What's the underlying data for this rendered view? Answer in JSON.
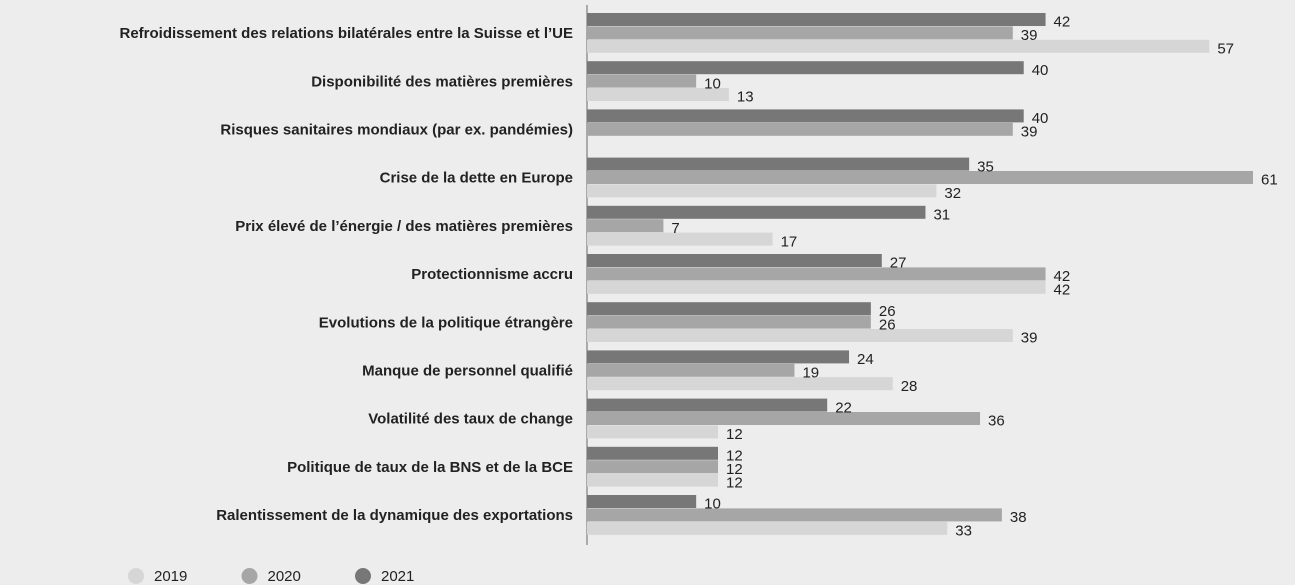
{
  "chart_data": {
    "type": "bar",
    "orientation": "horizontal",
    "categories": [
      "Refroidissement des relations bilatérales entre la Suisse et l’UE",
      "Disponibilité des matières premières",
      "Risques sanitaires mondiaux (par ex. pandémies)",
      "Crise de la dette en Europe",
      "Prix élevé de l’énergie / des matières premières",
      "Protectionnisme accru",
      "Evolutions de la politique étrangère",
      "Manque de personnel qualifié",
      "Volatilité des taux de change",
      "Politique de taux de la BNS et de la BCE",
      "Ralentissement de la dynamique des exportations"
    ],
    "series": [
      {
        "name": "2019",
        "color": "#d6d6d6",
        "values": [
          57,
          13,
          null,
          32,
          17,
          42,
          39,
          28,
          12,
          12,
          33
        ]
      },
      {
        "name": "2020",
        "color": "#a6a6a6",
        "values": [
          39,
          10,
          39,
          61,
          7,
          42,
          26,
          19,
          36,
          12,
          38
        ]
      },
      {
        "name": "2021",
        "color": "#777777",
        "values": [
          42,
          40,
          40,
          35,
          31,
          27,
          26,
          24,
          22,
          12,
          10
        ]
      }
    ],
    "legend": "bottom-left"
  }
}
